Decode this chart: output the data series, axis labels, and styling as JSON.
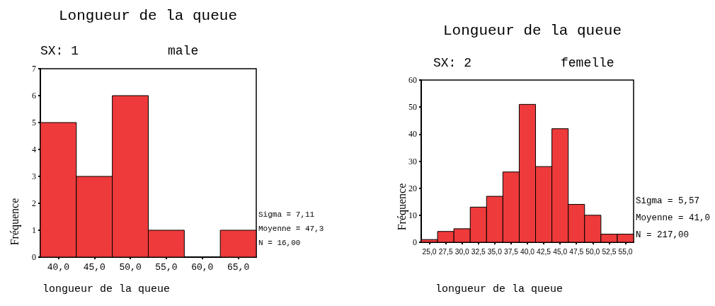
{
  "chart_data": [
    {
      "type": "histogram",
      "title": "Longueur de la queue",
      "subtitle": "SX: 1",
      "annotations": [
        "male",
        "Sigma = 7,11",
        "Moyenne = 47,3",
        "N = 16,00"
      ],
      "xlabel": "longueur de la queue",
      "ylabel": "Fréquence",
      "bins": [
        37.5,
        42.5,
        47.5,
        52.5,
        57.5,
        62.5,
        67.5
      ],
      "values": [
        5,
        3,
        6,
        1,
        0,
        1
      ],
      "color": "#ee3a3a",
      "xlim": [
        37.5,
        67.5
      ],
      "xticks": [
        {
          "value": 40,
          "label": "40,0"
        },
        {
          "value": 45,
          "label": "45,0"
        },
        {
          "value": 50,
          "label": "50,0"
        },
        {
          "value": 55,
          "label": "55,0"
        },
        {
          "value": 60,
          "label": "60,0"
        },
        {
          "value": 65,
          "label": "65,0"
        }
      ],
      "ylim": [
        0,
        7
      ],
      "yticks": [
        0,
        1,
        2,
        3,
        4,
        5,
        6,
        7
      ]
    },
    {
      "type": "histogram",
      "title": "Longueur de la queue",
      "subtitle": "SX: 2",
      "annotations": [
        "femelle",
        "Sigma = 5,57",
        "Moyenne = 41,0",
        "N = 217,00"
      ],
      "xlabel": "longueur de la queue",
      "ylabel": "Fréquence",
      "bins": [
        23.75,
        26.25,
        28.75,
        31.25,
        33.75,
        36.25,
        38.75,
        41.25,
        43.75,
        46.25,
        48.75,
        51.25,
        53.75,
        56.25
      ],
      "values": [
        1,
        4,
        5,
        13,
        17,
        26,
        51,
        28,
        42,
        14,
        10,
        3,
        3
      ],
      "color": "#ee3a3a",
      "xlim": [
        23.75,
        56.25
      ],
      "xticks": [
        {
          "value": 25,
          "label": "25,0"
        },
        {
          "value": 27.5,
          "label": "27,5"
        },
        {
          "value": 30,
          "label": "30,0"
        },
        {
          "value": 32.5,
          "label": "32,5"
        },
        {
          "value": 35,
          "label": "35,0"
        },
        {
          "value": 37.5,
          "label": "37,5"
        },
        {
          "value": 40,
          "label": "40,0"
        },
        {
          "value": 42.5,
          "label": "42,5"
        },
        {
          "value": 45,
          "label": "45,0"
        },
        {
          "value": 47.5,
          "label": "47,5"
        },
        {
          "value": 50,
          "label": "50,0"
        },
        {
          "value": 52.5,
          "label": "52,5"
        },
        {
          "value": 55,
          "label": "55,0"
        }
      ],
      "ylim": [
        0,
        60
      ],
      "yticks": [
        0,
        10,
        20,
        30,
        40,
        50,
        60
      ]
    }
  ]
}
